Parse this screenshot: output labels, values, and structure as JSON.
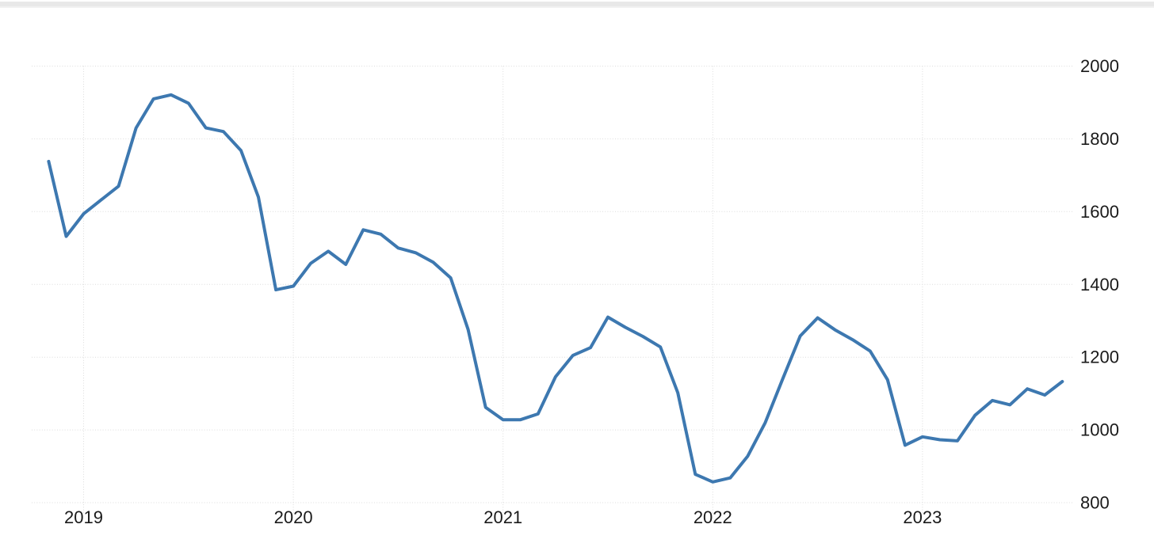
{
  "page": {
    "top_bar_color": "#e8e8e8",
    "background_color": "#ffffff"
  },
  "chart_data": {
    "type": "line",
    "title": "",
    "xlabel": "",
    "ylabel": "",
    "legend": "none",
    "grid": "dotted",
    "line_color": "#3d78b0",
    "grid_color": "#dcdcdc",
    "label_color": "#1a1a1a",
    "ylim": [
      800,
      2000
    ],
    "y_tick_labels": [
      "2000",
      "1800",
      "1600",
      "1400",
      "1200",
      "1000",
      "800"
    ],
    "x_tick_labels": [
      "2019",
      "2020",
      "2021",
      "2022",
      "2023"
    ],
    "x": [
      "2018-11",
      "2018-12",
      "2019-01",
      "2019-02",
      "2019-03",
      "2019-04",
      "2019-05",
      "2019-06",
      "2019-07",
      "2019-08",
      "2019-09",
      "2019-10",
      "2019-11",
      "2019-12",
      "2020-01",
      "2020-02",
      "2020-03",
      "2020-04",
      "2020-05",
      "2020-06",
      "2020-07",
      "2020-08",
      "2020-09",
      "2020-10",
      "2020-11",
      "2020-12",
      "2021-01",
      "2021-02",
      "2021-03",
      "2021-04",
      "2021-05",
      "2021-06",
      "2021-07",
      "2021-08",
      "2021-09",
      "2021-10",
      "2021-11",
      "2021-12",
      "2022-01",
      "2022-02",
      "2022-03",
      "2022-04",
      "2022-05",
      "2022-06",
      "2022-07",
      "2022-08",
      "2022-09",
      "2022-10",
      "2022-11",
      "2022-12",
      "2023-01",
      "2023-02",
      "2023-03",
      "2023-04",
      "2023-05",
      "2023-06",
      "2023-07",
      "2023-08",
      "2023-09"
    ],
    "values": [
      1738,
      1532,
      1594,
      1632,
      1670,
      1830,
      1910,
      1921,
      1898,
      1830,
      1820,
      1768,
      1640,
      1385,
      1395,
      1458,
      1491,
      1455,
      1550,
      1538,
      1500,
      1487,
      1461,
      1418,
      1276,
      1062,
      1028,
      1028,
      1044,
      1146,
      1205,
      1226,
      1310,
      1282,
      1257,
      1228,
      1102,
      878,
      857,
      868,
      928,
      1020,
      1140,
      1258,
      1308,
      1275,
      1248,
      1217,
      1138,
      958,
      981,
      973,
      970,
      1040,
      1081,
      1069,
      1113,
      1096,
      1133
    ]
  }
}
